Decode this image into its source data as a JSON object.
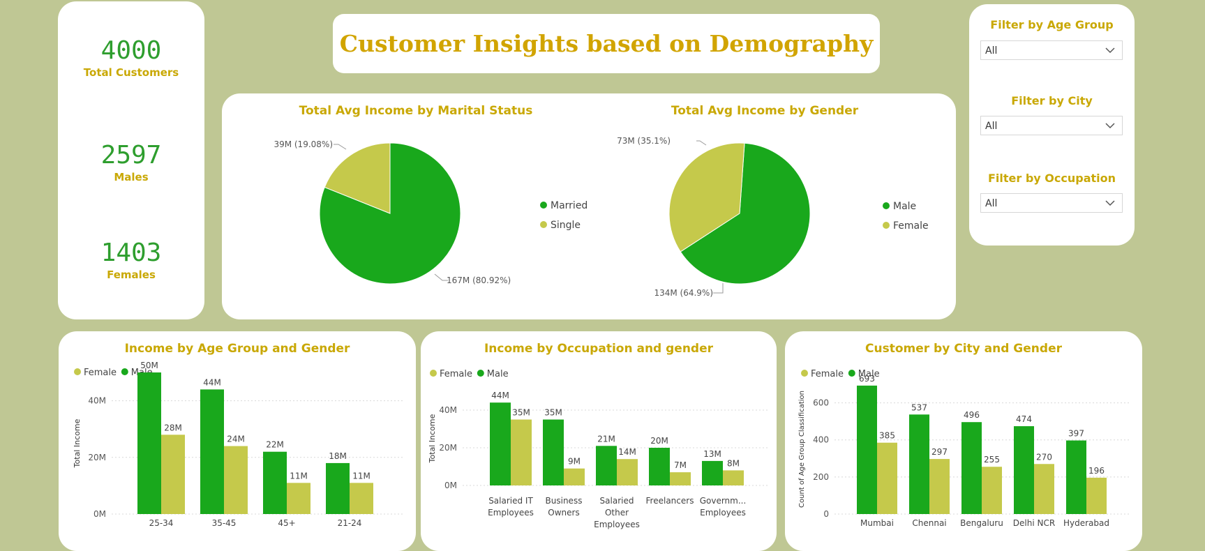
{
  "header": {
    "title": "Customer Insights based on Demography"
  },
  "kpis": [
    {
      "value": "4000",
      "label": "Total Customers"
    },
    {
      "value": "2597",
      "label": "Males"
    },
    {
      "value": "1403",
      "label": "Females"
    }
  ],
  "filters": [
    {
      "label": "Filter by Age Group",
      "value": "All"
    },
    {
      "label": "Filter by City",
      "value": "All"
    },
    {
      "label": "Filter by Occupation",
      "value": "All"
    }
  ],
  "colors": {
    "primary_green": "#19a81c",
    "secondary_olive": "#c5c94b",
    "title_gold": "#c9a805",
    "background": "#bfc794"
  },
  "chart_data": [
    {
      "type": "pie",
      "title": "Total Avg Income by Marital Status",
      "slices": [
        {
          "name": "Married",
          "value": 167,
          "label": "167M (80.92%)",
          "color": "#19a81c"
        },
        {
          "name": "Single",
          "value": 39,
          "label": "39M (19.08%)",
          "color": "#c5c94b"
        }
      ],
      "legend": [
        "Married",
        "Single"
      ],
      "legend_position": "right"
    },
    {
      "type": "pie",
      "title": "Total Avg Income by Gender",
      "slices": [
        {
          "name": "Male",
          "value": 134,
          "label": "134M (64.9%)",
          "color": "#19a81c"
        },
        {
          "name": "Female",
          "value": 73,
          "label": "73M (35.1%)",
          "color": "#c5c94b"
        }
      ],
      "legend": [
        "Male",
        "Female"
      ],
      "legend_position": "right"
    },
    {
      "type": "bar",
      "title": "Income by Age Group and Gender",
      "ylabel": "Total Income",
      "categories": [
        "25-34",
        "35-45",
        "45+",
        "21-24"
      ],
      "series": [
        {
          "name": "Male",
          "values": [
            50,
            44,
            22,
            18
          ],
          "labels": [
            "50M",
            "44M",
            "22M",
            "18M"
          ],
          "color": "#19a81c"
        },
        {
          "name": "Female",
          "values": [
            28,
            24,
            11,
            11
          ],
          "labels": [
            "28M",
            "24M",
            "11M",
            "11M"
          ],
          "color": "#c5c94b"
        }
      ],
      "legend": [
        "Female",
        "Male"
      ],
      "ylim": [
        0,
        50
      ],
      "yticks": [
        0,
        20,
        40
      ],
      "ytick_labels": [
        "0M",
        "20M",
        "40M"
      ],
      "grid": true
    },
    {
      "type": "bar",
      "title": "Income by Occupation and gender",
      "ylabel": "Total Income",
      "categories": [
        [
          "Salaried IT",
          "Employees"
        ],
        [
          "Business",
          "Owners"
        ],
        [
          "Salaried",
          "Other",
          "Employees"
        ],
        [
          "Freelancers"
        ],
        [
          "Governm...",
          "Employees"
        ]
      ],
      "series": [
        {
          "name": "Male",
          "values": [
            44,
            35,
            21,
            20,
            13
          ],
          "labels": [
            "44M",
            "35M",
            "21M",
            "20M",
            "13M"
          ],
          "color": "#19a81c"
        },
        {
          "name": "Female",
          "values": [
            35,
            9,
            14,
            7,
            8
          ],
          "labels": [
            "35M",
            "9M",
            "14M",
            "7M",
            "8M"
          ],
          "color": "#c5c94b"
        }
      ],
      "legend": [
        "Female",
        "Male"
      ],
      "ylim": [
        0,
        50
      ],
      "yticks": [
        0,
        20,
        40
      ],
      "ytick_labels": [
        "0M",
        "20M",
        "40M"
      ],
      "grid": true
    },
    {
      "type": "bar",
      "title": "Customer by City and Gender",
      "ylabel": "Count of Age Group Classification",
      "categories": [
        "Mumbai",
        "Chennai",
        "Bengaluru",
        "Delhi NCR",
        "Hyderabad"
      ],
      "series": [
        {
          "name": "Male",
          "values": [
            693,
            537,
            496,
            474,
            397
          ],
          "labels": [
            "693",
            "537",
            "496",
            "474",
            "397"
          ],
          "color": "#19a81c"
        },
        {
          "name": "Female",
          "values": [
            385,
            297,
            255,
            270,
            196
          ],
          "labels": [
            "385",
            "297",
            "255",
            "270",
            "196"
          ],
          "color": "#c5c94b"
        }
      ],
      "legend": [
        "Female",
        "Male"
      ],
      "ylim": [
        0,
        700
      ],
      "yticks": [
        0,
        200,
        400,
        600
      ],
      "ytick_labels": [
        "0",
        "200",
        "400",
        "600"
      ],
      "grid": true
    }
  ]
}
